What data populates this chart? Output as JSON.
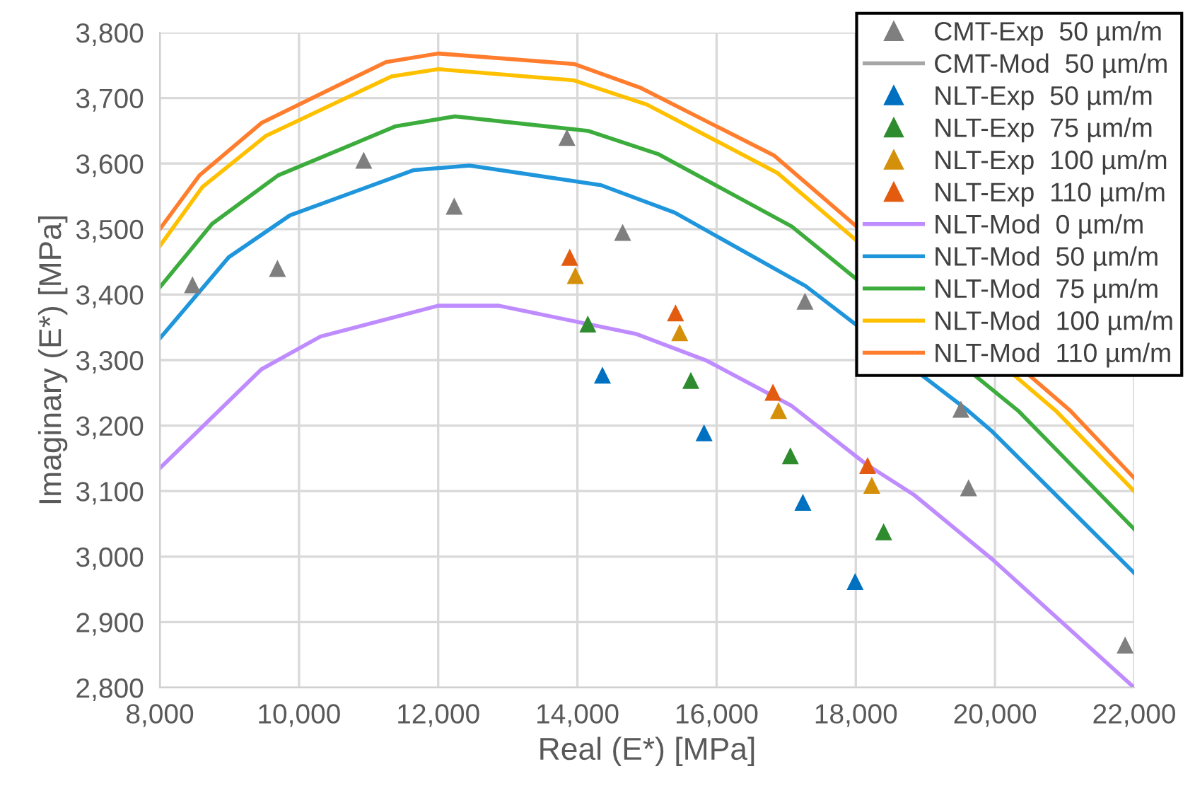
{
  "chart_data": {
    "type": "scatter",
    "xlabel": "Real (E*) [MPa]",
    "ylabel": "Imaginary (E*) [MPa]",
    "xlim": [
      8000,
      22000
    ],
    "xticks": [
      {
        "value": 8000,
        "label": "8,000"
      },
      {
        "value": 10000,
        "label": "10,000"
      },
      {
        "value": 12000,
        "label": "12,000"
      },
      {
        "value": 14000,
        "label": "14,000"
      },
      {
        "value": 16000,
        "label": "16,000"
      },
      {
        "value": 18000,
        "label": "18,000"
      },
      {
        "value": 20000,
        "label": "20,000"
      },
      {
        "value": 22000,
        "label": "22,000"
      }
    ],
    "ylim": [
      2800,
      3800
    ],
    "yticks": [
      {
        "value": 2800,
        "label": "2,800"
      },
      {
        "value": 2900,
        "label": "2,900"
      },
      {
        "value": 3000,
        "label": "3,000"
      },
      {
        "value": 3100,
        "label": "3,100"
      },
      {
        "value": 3200,
        "label": "3,200"
      },
      {
        "value": 3300,
        "label": "3,300"
      },
      {
        "value": 3400,
        "label": "3,400"
      },
      {
        "value": 3500,
        "label": "3,500"
      },
      {
        "value": 3600,
        "label": "3,600"
      },
      {
        "value": 3700,
        "label": "3,700"
      },
      {
        "value": 3800,
        "label": "3,800"
      }
    ],
    "grid": true,
    "legend": "top right",
    "series": [
      {
        "name": "CMT-Exp  50 µm/m",
        "marker": "triangle",
        "color": "#7f7f7f",
        "x": [
          8470,
          9690,
          10930,
          12230,
          13850,
          14650,
          17270,
          19510,
          19620,
          21870
        ],
        "values": [
          3415,
          3440,
          3605,
          3535,
          3640,
          3495,
          3390,
          3225,
          3105,
          2865
        ]
      },
      {
        "name": "CMT-Mod  50 µm/m",
        "type": "line",
        "line_style": "solid",
        "color": "#a6a6a6"
      },
      {
        "name": "NLT-Exp  50 µm/m",
        "marker": "triangle",
        "color": "#0070c0",
        "x": [
          14360,
          15820,
          17240,
          17990
        ],
        "values": [
          3277,
          3189,
          3083,
          2962
        ]
      },
      {
        "name": "NLT-Exp  75 µm/m",
        "marker": "triangle",
        "color": "#2e8b2e",
        "x": [
          14150,
          15630,
          17060,
          18400
        ],
        "values": [
          3355,
          3269,
          3154,
          3038
        ]
      },
      {
        "name": "NLT-Exp  100 µm/m",
        "marker": "triangle",
        "color": "#d4900a",
        "x": [
          13970,
          15470,
          16890,
          18230
        ],
        "values": [
          3429,
          3342,
          3223,
          3109
        ]
      },
      {
        "name": "NLT-Exp  110 µm/m",
        "marker": "triangle",
        "color": "#e35b0e",
        "x": [
          13890,
          15410,
          16810,
          18170
        ],
        "values": [
          3457,
          3372,
          3251,
          3139
        ]
      },
      {
        "name": "NLT-Mod  0 µm/m",
        "type": "line",
        "line_style": "solid",
        "color": "#bf8cff",
        "x": [
          8000,
          9460,
          10310,
          12000,
          12870,
          14840,
          15860,
          17080,
          18150,
          18840,
          19960,
          22000
        ],
        "values": [
          3135,
          3286,
          3336,
          3383,
          3383,
          3340,
          3299,
          3230,
          3141,
          3094,
          2996,
          2800
        ]
      },
      {
        "name": "NLT-Mod  50 µm/m",
        "type": "line",
        "line_style": "solid",
        "color": "#1f96dc",
        "x": [
          8000,
          8990,
          9870,
          11650,
          12450,
          14340,
          15400,
          17280,
          19610,
          19960,
          22000
        ],
        "values": [
          3333,
          3457,
          3521,
          3590,
          3597,
          3567,
          3525,
          3413,
          3223,
          3191,
          2975
        ]
      },
      {
        "name": "NLT-Mod  75 µm/m",
        "type": "line",
        "line_style": "solid",
        "color": "#3cad3c",
        "x": [
          8000,
          8750,
          9700,
          11390,
          12240,
          14150,
          15170,
          17080,
          20330,
          22000
        ],
        "values": [
          3411,
          3508,
          3582,
          3657,
          3672,
          3650,
          3614,
          3504,
          3223,
          3042
        ]
      },
      {
        "name": "NLT-Mod  100 µm/m",
        "type": "line",
        "line_style": "solid",
        "color": "#ffc000",
        "x": [
          8000,
          8610,
          9520,
          11330,
          12000,
          13950,
          15000,
          16870,
          20870,
          22000
        ],
        "values": [
          3474,
          3564,
          3642,
          3733,
          3744,
          3727,
          3690,
          3586,
          3223,
          3100
        ]
      },
      {
        "name": "NLT-Mod  110 µm/m",
        "type": "line",
        "line_style": "solid",
        "color": "#ff7d2d",
        "x": [
          8000,
          8570,
          9460,
          11250,
          12000,
          13950,
          14900,
          16830,
          21080,
          22000
        ],
        "values": [
          3500,
          3582,
          3662,
          3755,
          3768,
          3752,
          3716,
          3612,
          3223,
          3120
        ]
      }
    ]
  }
}
